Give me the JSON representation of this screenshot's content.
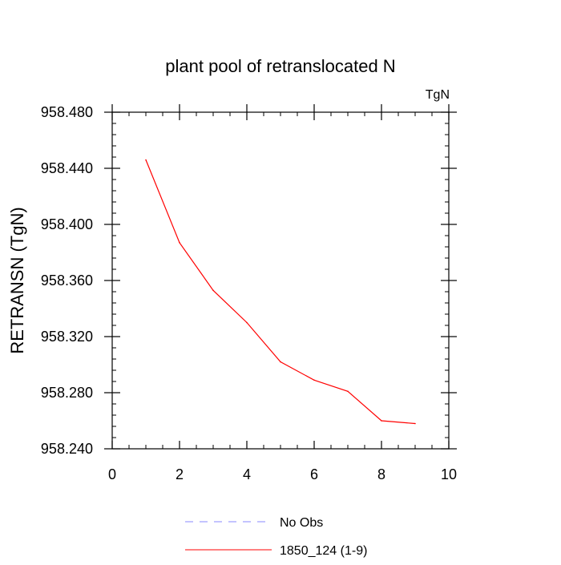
{
  "chart_data": {
    "type": "line",
    "title": "plant pool of retranslocated N",
    "units_label": "TgN",
    "ylabel": "RETRANSN  (TgN)",
    "xlabel": "",
    "xlim": [
      0,
      10
    ],
    "ylim": [
      958.24,
      958.48
    ],
    "x_ticks": [
      0,
      2,
      4,
      6,
      8,
      10
    ],
    "x_tick_labels": [
      "0",
      "2",
      "4",
      "6",
      "8",
      "10"
    ],
    "y_ticks": [
      958.24,
      958.28,
      958.32,
      958.36,
      958.4,
      958.44,
      958.48
    ],
    "y_tick_labels": [
      "958.240",
      "958.280",
      "958.320",
      "958.360",
      "958.400",
      "958.440",
      "958.480"
    ],
    "grid": false,
    "legend_position": "bottom",
    "series": [
      {
        "name": "1850_124 (1-9)",
        "color": "#ff0000",
        "style": "solid",
        "x": [
          1,
          2,
          3,
          4,
          5,
          6,
          7,
          8,
          9
        ],
        "values": [
          958.446,
          958.387,
          958.353,
          958.33,
          958.302,
          958.289,
          958.281,
          958.26,
          958.258
        ]
      }
    ],
    "legend": [
      {
        "label": "No Obs",
        "color": "#8888ff",
        "style": "dashed"
      },
      {
        "label": "1850_124 (1-9)",
        "color": "#ff0000",
        "style": "solid"
      }
    ]
  }
}
